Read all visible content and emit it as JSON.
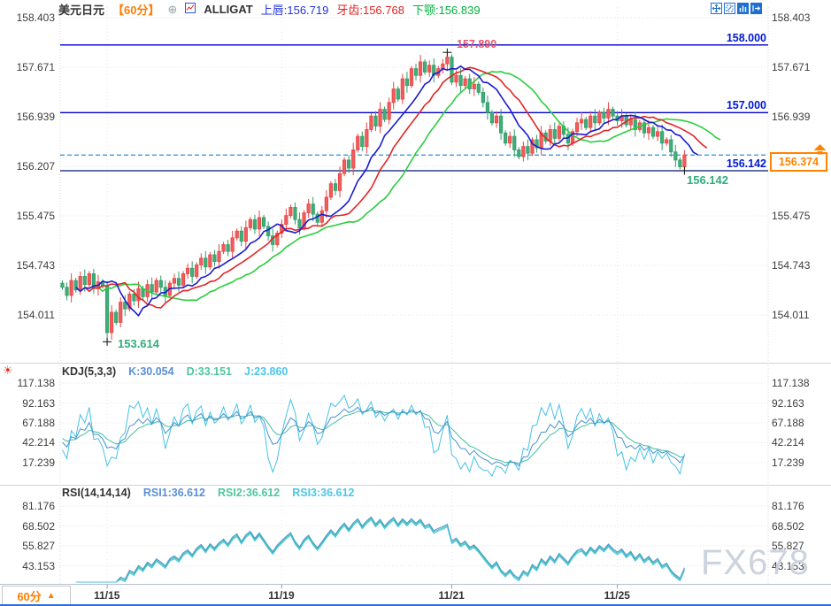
{
  "header": {
    "symbol": "美元日元",
    "period": "【60分】",
    "plus_icon": "⊕",
    "indicator_name": "ALLIGAT",
    "lips": "上唇:156.719",
    "teeth": "牙齿:156.768",
    "jaw": "下颚:156.839"
  },
  "toolbar": {
    "icons": [
      "pan",
      "zoom-area",
      "zoom-bars",
      "exit"
    ]
  },
  "labels": {
    "line_158": "158.000",
    "line_157": "157.000",
    "current_blue": "156.142",
    "current_green": "156.142",
    "current_price_box": "156.374",
    "high": "157.890",
    "low": "153.614"
  },
  "main_panel": {
    "ticks": [
      "158.403",
      "157.671",
      "156.939",
      "156.207",
      "155.475",
      "154.743",
      "154.011"
    ]
  },
  "kdj_panel": {
    "title": "KDJ(5,3,3)",
    "k": "K:30.054",
    "d": "D:33.151",
    "j": "J:23.860",
    "ticks": [
      "117.138",
      "92.163",
      "67.188",
      "42.214",
      "17.239"
    ]
  },
  "rsi_panel": {
    "title": "RSI(14,14,14)",
    "r1": "RSI1:36.612",
    "r2": "RSI2:36.612",
    "r3": "RSI3:36.612",
    "ticks": [
      "81.176",
      "68.502",
      "55.827",
      "43.153"
    ]
  },
  "bottom": {
    "period_label": "60分",
    "period_arrow": "▲"
  },
  "watermark": {
    "text": "FX678"
  },
  "colors": {
    "up": "#e84545",
    "up_fill": "#ef5d5d",
    "down": "#2f9e68",
    "down_fill": "#41ad79",
    "lips": "#1b1bd0",
    "teeth": "#e02626",
    "jaw": "#2bce3e",
    "ref_line": "#0000c8",
    "ref_label": "#0018d8",
    "dashed_line": "#2d8fe0",
    "current_line": "#001878",
    "accent_orange": "#ff8400",
    "label_green": "#2fae7e",
    "label_red": "#e4556a",
    "k_line": "#4a90d2",
    "d_line": "#3fbfa0",
    "j_line": "#44c3e6",
    "grid": "#e4e4e4",
    "axis_text": "#3c3c3c",
    "separator": "#ccd4e0",
    "watermark": "#ccd3de",
    "toolbar_blue": "#1d6fd0",
    "date_text": "#333333"
  },
  "chart_data": {
    "type": "candlestick",
    "title": "美元日元 60分 (USD/JPY 60-min) with ALLIGATOR overlay, KDJ and RSI sub-panels",
    "y_ticks_main": [
      158.403,
      157.671,
      156.939,
      156.207,
      155.475,
      154.743,
      154.011
    ],
    "x_dates": [
      {
        "label": "11/15",
        "index": 10
      },
      {
        "label": "11/19",
        "index": 49
      },
      {
        "label": "11/21",
        "index": 87
      },
      {
        "label": "11/25",
        "index": 124
      }
    ],
    "ref_lines": [
      158.0,
      157.0
    ],
    "dashed_line": 156.374,
    "solid_line": 156.142,
    "high_point": 157.89,
    "low_point": 153.614,
    "last_price": 156.374,
    "wick": 0.04,
    "closes": [
      154.42,
      154.3,
      154.52,
      154.38,
      154.58,
      154.46,
      154.62,
      154.4,
      154.5,
      154.44,
      153.75,
      154.05,
      153.9,
      154.2,
      154.1,
      154.32,
      154.22,
      154.4,
      154.28,
      154.46,
      154.35,
      154.52,
      154.42,
      154.3,
      154.48,
      154.55,
      154.45,
      154.62,
      154.7,
      154.58,
      154.75,
      154.85,
      154.72,
      154.9,
      154.8,
      154.95,
      155.05,
      154.95,
      155.15,
      155.25,
      155.1,
      155.3,
      155.42,
      155.28,
      155.45,
      155.32,
      155.18,
      155.05,
      155.22,
      155.35,
      155.48,
      155.6,
      155.42,
      155.3,
      155.52,
      155.65,
      155.5,
      155.38,
      155.55,
      155.75,
      155.95,
      155.85,
      156.1,
      156.3,
      156.18,
      156.45,
      156.65,
      156.5,
      156.75,
      156.95,
      156.8,
      157.05,
      156.9,
      157.15,
      157.35,
      157.2,
      157.5,
      157.4,
      157.65,
      157.55,
      157.75,
      157.6,
      157.7,
      157.55,
      157.65,
      157.72,
      157.82,
      157.45,
      157.55,
      157.4,
      157.5,
      157.35,
      157.42,
      157.3,
      157.15,
      157.0,
      156.85,
      156.95,
      156.7,
      156.55,
      156.65,
      156.45,
      156.35,
      156.5,
      156.4,
      156.6,
      156.48,
      156.7,
      156.58,
      156.75,
      156.62,
      156.8,
      156.68,
      156.55,
      156.72,
      156.85,
      156.9,
      156.78,
      156.95,
      156.85,
      157.0,
      156.92,
      157.05,
      156.95,
      156.88,
      156.95,
      156.82,
      156.9,
      156.75,
      156.85,
      156.7,
      156.78,
      156.65,
      156.72,
      156.55,
      156.6,
      156.42,
      156.3,
      156.2,
      156.374
    ],
    "overrides": {
      "10": {
        "low": 153.614
      },
      "86": {
        "high": 157.89
      },
      "139": {
        "low": 156.142
      }
    },
    "markers": [
      {
        "index": 10,
        "value": 153.614
      },
      {
        "index": 86,
        "value": 157.89
      },
      {
        "index": 139,
        "value": 156.142
      }
    ],
    "alligator": {
      "lips_period": 5,
      "lips_shift": 3,
      "teeth_period": 8,
      "teeth_shift": 5,
      "jaw_period": 13,
      "jaw_shift": 8
    },
    "kdj": {
      "params": [
        5,
        3,
        3
      ],
      "ticks": [
        117.138,
        92.163,
        67.188,
        42.214,
        17.239
      ],
      "current": {
        "k": 30.054,
        "d": 33.151,
        "j": 23.86
      }
    },
    "rsi": {
      "params": [
        14,
        14,
        14
      ],
      "ticks": [
        81.176,
        68.502,
        55.827,
        43.153
      ],
      "current": [
        36.612,
        36.612,
        36.612
      ]
    }
  }
}
